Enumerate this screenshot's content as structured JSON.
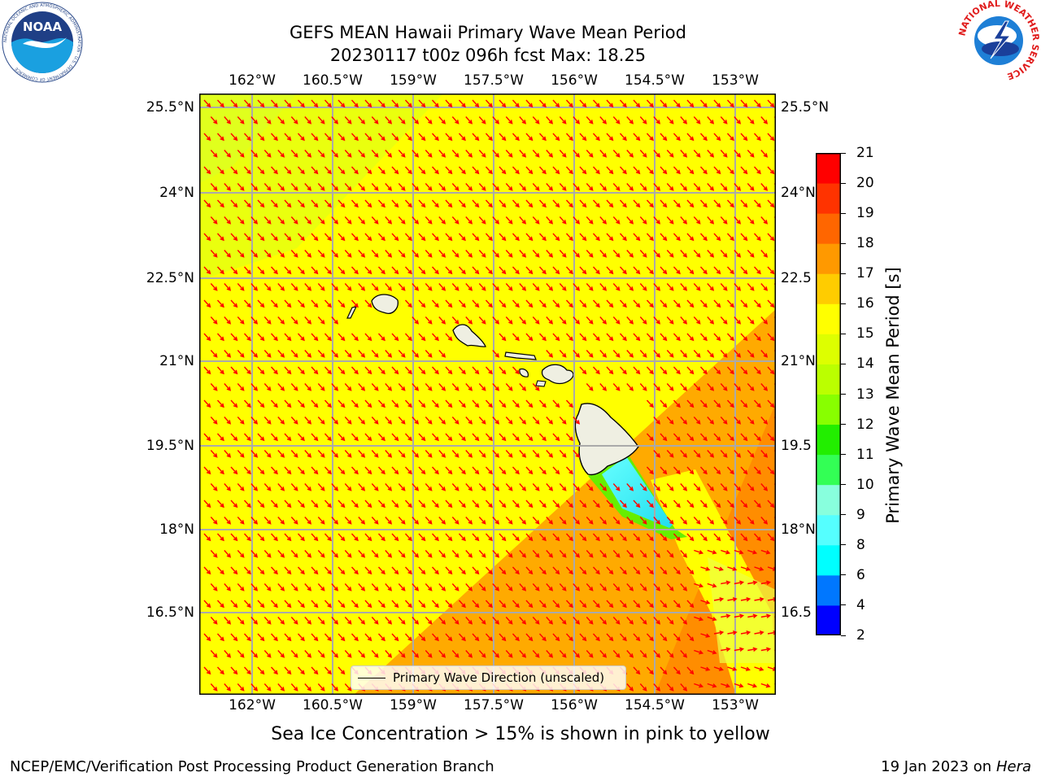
{
  "header": {
    "title_line1": "GEFS MEAN Hawaii Primary Wave Mean Period",
    "title_line2": "20230117 t00z 096h fcst   Max: 18.25"
  },
  "logos": {
    "noara_text": "NOAA",
    "noaa_ring_text": "NATIONAL OCEANIC AND ATMOSPHERIC ADMINISTRATION · U.S. DEPARTMENT OF COMMERCE",
    "nws_ring_text": "NATIONAL WEATHER SERVICE"
  },
  "map": {
    "lon_labels": [
      "162°W",
      "160.5°W",
      "159°W",
      "157.5°W",
      "156°W",
      "154.5°W",
      "153°W"
    ],
    "lat_labels": [
      "25.5°N",
      "24°N",
      "22.5°N",
      "21°N",
      "19.5°N",
      "18°N",
      "16.5°N"
    ],
    "lat_labels_right": [
      "25.5°N",
      "24°N",
      "22.5",
      "21°N",
      "19.5",
      "18°N",
      "16.5"
    ],
    "arrow_color": "#ff0000",
    "legend_label": "Primary Wave Direction (unscaled)"
  },
  "colorbar": {
    "label": "Primary Wave Mean Period [s]",
    "ticks": [
      "2",
      "4",
      "6",
      "8",
      "9",
      "10",
      "11",
      "12",
      "13",
      "14",
      "15",
      "16",
      "17",
      "18",
      "19",
      "20",
      "21"
    ],
    "colors": [
      "#0000ff",
      "#0077ff",
      "#00ffff",
      "#55ffff",
      "#88ffdd",
      "#33ff55",
      "#22ee00",
      "#88ff00",
      "#bbff00",
      "#ddff00",
      "#ffff00",
      "#ffcc00",
      "#ff9900",
      "#ff6600",
      "#ff3300",
      "#ff0000"
    ]
  },
  "caption": "Sea Ice Concentration > 15% is shown in pink to yellow",
  "footer": {
    "left": "NCEP/EMC/Verification Post Processing Product Generation Branch",
    "right_date": "19 Jan 2023 on ",
    "right_machine": "Hera"
  }
}
